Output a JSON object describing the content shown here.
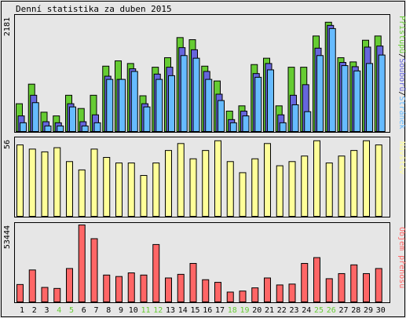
{
  "title": "Denní statistika za duben 2015",
  "chart_data": [
    {
      "type": "bar",
      "categories": [
        "1",
        "2",
        "3",
        "4",
        "5",
        "6",
        "7",
        "8",
        "9",
        "10",
        "11",
        "12",
        "13",
        "14",
        "15",
        "16",
        "17",
        "18",
        "19",
        "20",
        "21",
        "22",
        "23",
        "24",
        "25",
        "26",
        "27",
        "28",
        "29",
        "30"
      ],
      "weekend_days": [
        "4",
        "5",
        "11",
        "12",
        "18",
        "19",
        "25",
        "26"
      ],
      "ymax_label": "2181",
      "ylim": [
        0,
        2181
      ],
      "legend": [
        "Přístupů",
        "Souborů",
        "Stránek"
      ],
      "legend_separator": "/",
      "series": [
        {
          "name": "Přístupů",
          "color": "#66cc33",
          "values": [
            540,
            910,
            380,
            310,
            700,
            450,
            700,
            1250,
            1350,
            1300,
            690,
            1230,
            1410,
            1790,
            1750,
            1250,
            970,
            400,
            500,
            1280,
            1400,
            500,
            1230,
            1230,
            1820,
            2080,
            1410,
            1330,
            1740,
            1820
          ]
        },
        {
          "name": "Souborů",
          "color": "#6666dd",
          "values": [
            310,
            700,
            200,
            180,
            540,
            200,
            330,
            1060,
            1000,
            1200,
            540,
            1100,
            1230,
            1600,
            1560,
            1150,
            720,
            240,
            400,
            1110,
            1300,
            330,
            700,
            900,
            1590,
            2020,
            1320,
            1240,
            1610,
            1630
          ]
        },
        {
          "name": "Stránek",
          "color": "#66bbff",
          "values": [
            180,
            560,
            120,
            120,
            480,
            120,
            180,
            1000,
            1000,
            1150,
            480,
            1000,
            1070,
            1450,
            1400,
            1000,
            600,
            180,
            310,
            1040,
            1180,
            180,
            520,
            390,
            1450,
            1960,
            1260,
            1160,
            1300,
            1460
          ]
        }
      ]
    },
    {
      "type": "bar",
      "categories": [
        "1",
        "2",
        "3",
        "4",
        "5",
        "6",
        "7",
        "8",
        "9",
        "10",
        "11",
        "12",
        "13",
        "14",
        "15",
        "16",
        "17",
        "18",
        "19",
        "20",
        "21",
        "22",
        "23",
        "24",
        "25",
        "26",
        "27",
        "28",
        "29",
        "30"
      ],
      "ymax_label": "56",
      "ylim": [
        0,
        56
      ],
      "legend": [
        "Návštěv"
      ],
      "series": [
        {
          "name": "Návštěv",
          "color": "#ffff99",
          "values": [
            52,
            49,
            47,
            50,
            40,
            34,
            49,
            43,
            39,
            39,
            30,
            39,
            48,
            53,
            42,
            48,
            55,
            40,
            32,
            42,
            53,
            37,
            40,
            44,
            55,
            39,
            44,
            48,
            55,
            52
          ]
        }
      ]
    },
    {
      "type": "bar",
      "categories": [
        "1",
        "2",
        "3",
        "4",
        "5",
        "6",
        "7",
        "8",
        "9",
        "10",
        "11",
        "12",
        "13",
        "14",
        "15",
        "16",
        "17",
        "18",
        "19",
        "20",
        "21",
        "22",
        "23",
        "24",
        "25",
        "26",
        "27",
        "28",
        "29",
        "30"
      ],
      "ymax_label": "53444",
      "ylim": [
        0,
        53444
      ],
      "legend": [
        "Objem přenosu"
      ],
      "series": [
        {
          "name": "Objem přenosu",
          "color": "#ff6666",
          "values": [
            12500,
            22500,
            10500,
            9800,
            23500,
            53444,
            44000,
            19000,
            18000,
            20500,
            19000,
            40000,
            17000,
            19500,
            27000,
            15800,
            14000,
            7300,
            8000,
            10200,
            17000,
            12200,
            12800,
            27000,
            31000,
            16500,
            20000,
            26000,
            20000,
            23500
          ]
        }
      ]
    }
  ],
  "colors": {
    "background": "#e6e6e6",
    "frame": "#000000",
    "weekend_label": "#66cc33",
    "weekday_label": "#000000"
  }
}
